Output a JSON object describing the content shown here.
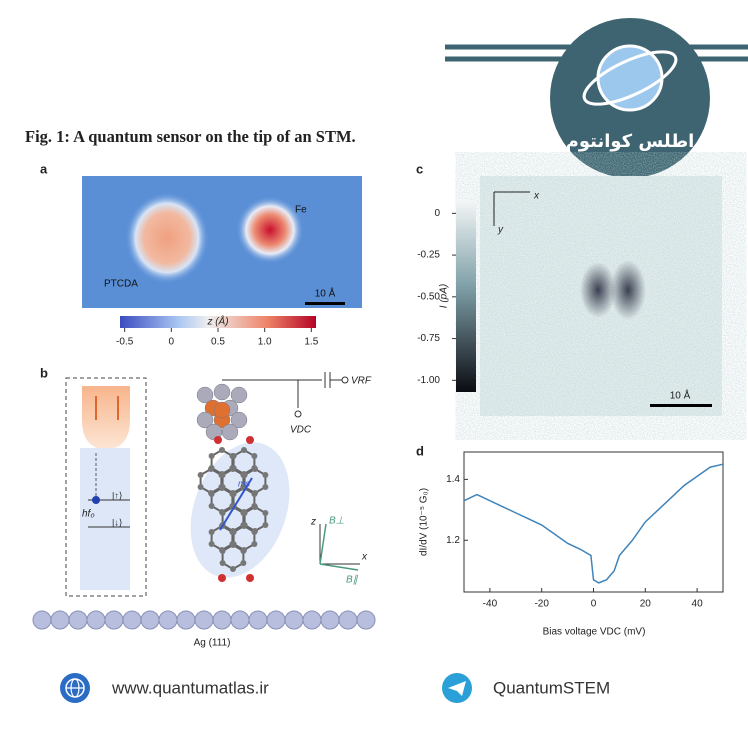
{
  "header": {
    "title": "Fig. 1: A quantum sensor on the tip of an STM.",
    "logo_text": "اطلس کوانتوم"
  },
  "panel_a": {
    "label": "a",
    "molecule_label": "PTCDA",
    "atom_label": "Fe",
    "scalebar": "10 Å",
    "colorbar": {
      "label": "z (Å)",
      "lim": [
        -0.55,
        1.55
      ],
      "ticks": [
        -0.5,
        0,
        0.5,
        {
          "value": 1,
          "label": "1.0"
        },
        1.5
      ]
    }
  },
  "panel_b": {
    "label": "b",
    "up_state": "|↑⟩",
    "down_state": "|↓⟩",
    "frequency": "hf₀",
    "v_rf": "VRF",
    "v_dc": "VDC",
    "moment": "ms",
    "axis_z": "z",
    "axis_x": "x",
    "b_perp": "B⊥",
    "b_par": "B∥",
    "substrate": "Ag (111)"
  },
  "panel_c": {
    "label": "c",
    "axis_x": "x",
    "axis_y": "y",
    "scalebar": "10 Å",
    "colorbar": {
      "label": "I (pA)",
      "lim": [
        -1.07,
        0.08
      ],
      "ticks": [
        0,
        -0.25,
        {
          "value": -0.5,
          "label": "-0.50"
        },
        -0.75,
        {
          "value": -1,
          "label": "-1.00"
        }
      ]
    }
  },
  "chart_data": {
    "type": "line",
    "panel_label": "d",
    "x_label": "Bias voltage VDC (mV)",
    "y_label": "dI/dV (10⁻⁵ G₀)",
    "x": [
      -50,
      -45,
      -40,
      -35,
      -30,
      -25,
      -20,
      -15,
      -10,
      -5,
      -1,
      0,
      2,
      5,
      8,
      10,
      15,
      20,
      25,
      30,
      35,
      40,
      45,
      50
    ],
    "series": [
      {
        "color": "#3f84bb",
        "values": [
          1.33,
          1.35,
          1.33,
          1.31,
          1.29,
          1.27,
          1.25,
          1.22,
          1.19,
          1.17,
          1.15,
          1.07,
          1.06,
          1.07,
          1.1,
          1.15,
          1.2,
          1.26,
          1.3,
          1.34,
          1.38,
          1.41,
          1.44,
          1.45
        ]
      }
    ],
    "xlim": [
      -50,
      50
    ],
    "ylim": [
      1.03,
      1.49
    ],
    "xticks": [
      -40,
      -20,
      0,
      20,
      40
    ],
    "yticks": [
      1.2,
      1.4
    ]
  },
  "footer": {
    "website": "www.quantumatlas.ir",
    "channel": "QuantumSTEM"
  }
}
